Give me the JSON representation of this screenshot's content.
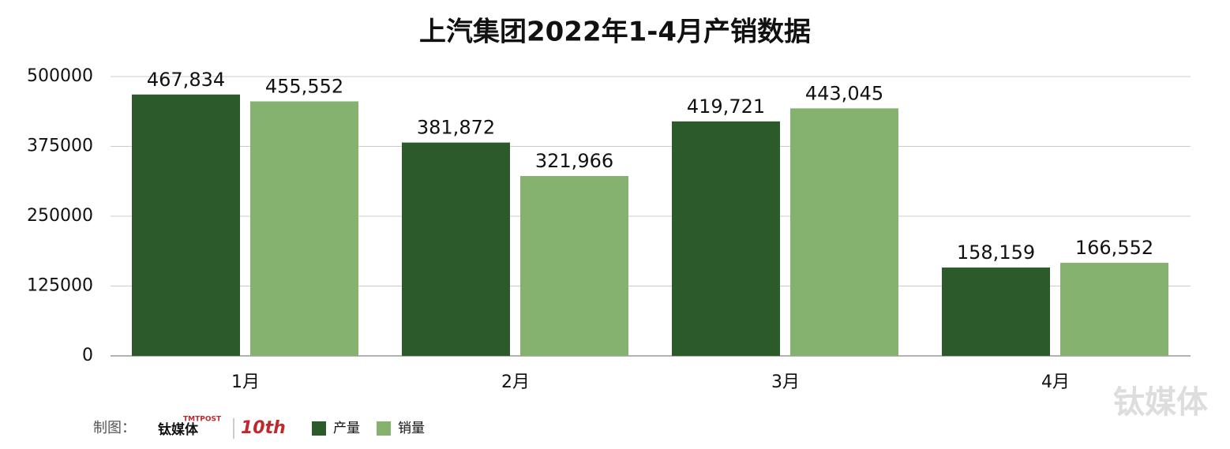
{
  "chart_data": {
    "type": "bar",
    "title": "上汽集团2022年1-4月产销数据",
    "categories": [
      "1月",
      "2月",
      "3月",
      "4月"
    ],
    "series": [
      {
        "name": "产量",
        "color": "#2d5a2b",
        "values": [
          467834,
          381872,
          419721,
          158159
        ],
        "value_labels": [
          "467,834",
          "381,872",
          "419,721",
          "158,159"
        ]
      },
      {
        "name": "销量",
        "color": "#86b26f",
        "values": [
          455552,
          321966,
          443045,
          166552
        ],
        "value_labels": [
          "455,552",
          "321,966",
          "443,045",
          "166,552"
        ]
      }
    ],
    "ylim": [
      0,
      500000
    ],
    "yticks": [
      0,
      125000,
      250000,
      375000,
      500000
    ],
    "grid": true,
    "credit": "制图：",
    "logo": [
      "TMTPOST",
      "钛媒体",
      "10th"
    ],
    "watermark": "钛媒体"
  }
}
